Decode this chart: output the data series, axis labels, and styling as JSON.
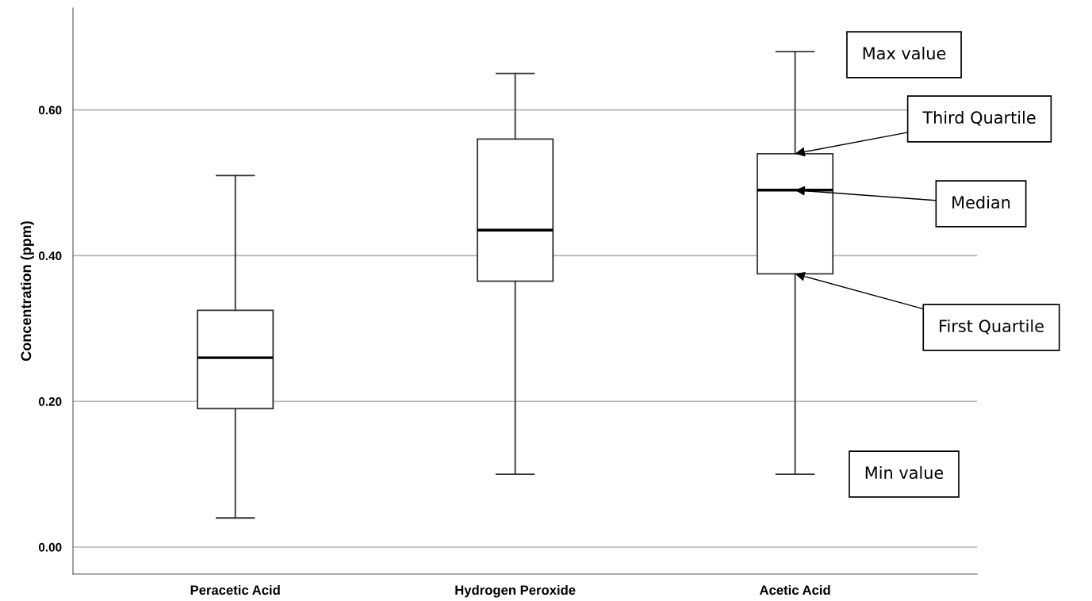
{
  "chart_data": {
    "type": "box",
    "ylabel": "Concentration (ppm)",
    "categories": [
      "Peracetic Acid",
      "Hydrogen Peroxide",
      "Acetic Acid"
    ],
    "boxes": [
      {
        "low": 0.04,
        "q1": 0.19,
        "median": 0.26,
        "q3": 0.325,
        "high": 0.51
      },
      {
        "low": 0.1,
        "q1": 0.365,
        "median": 0.435,
        "q3": 0.56,
        "high": 0.65
      },
      {
        "low": 0.1,
        "q1": 0.375,
        "median": 0.49,
        "q3": 0.54,
        "high": 0.68
      }
    ],
    "color": "#ffffff",
    "ylim": [
      -0.037,
      0.74
    ],
    "yticks": [
      {
        "value": 0,
        "label": "0.00"
      },
      {
        "value": 0.2,
        "label": "0.20"
      },
      {
        "value": 0.4,
        "label": "0.40"
      },
      {
        "value": 0.6,
        "label": "0.60"
      }
    ],
    "grid": "y",
    "annotations": [
      "Max value",
      {
        "text": "Third Quartile",
        "x": "Acetic Acid",
        "y": 0.54
      },
      {
        "text": "Median",
        "x": "Acetic Acid",
        "y": 0.49
      },
      {
        "text": "First Quartile",
        "x": "Acetic Acid",
        "y": 0.375
      },
      "Min value"
    ]
  }
}
